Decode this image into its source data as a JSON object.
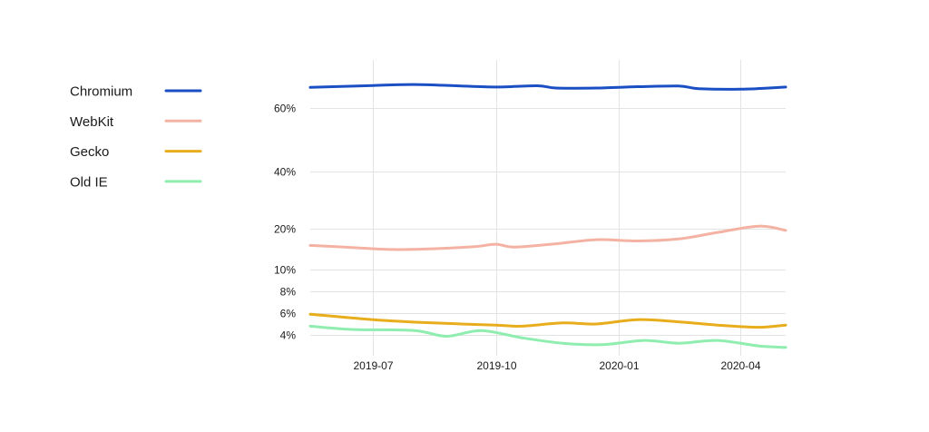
{
  "chart_data": {
    "type": "line",
    "title": "",
    "xlabel": "",
    "ylabel": "",
    "grid": true,
    "legend_position": "left",
    "x_ticks": [
      "2019-07",
      "2019-10",
      "2020-01",
      "2020-04"
    ],
    "y_ticks": [
      "4%",
      "6%",
      "8%",
      "10%",
      "20%",
      "40%",
      "60%"
    ],
    "y_tick_values": [
      4,
      6,
      8,
      10,
      20,
      40,
      60
    ],
    "x_range": [
      "2019-05-15",
      "2020-05-05"
    ],
    "series": [
      {
        "name": "Chromium",
        "color": "#1a4fc4",
        "points": [
          [
            "2019-05-15",
            66.5
          ],
          [
            "2019-07-01",
            67.1
          ],
          [
            "2019-08-01",
            67.4
          ],
          [
            "2019-09-01",
            67.0
          ],
          [
            "2019-10-01",
            66.6
          ],
          [
            "2019-11-01",
            67.0
          ],
          [
            "2019-11-15",
            66.3
          ],
          [
            "2019-12-15",
            66.3
          ],
          [
            "2020-01-15",
            66.7
          ],
          [
            "2020-02-15",
            66.9
          ],
          [
            "2020-03-01",
            66.1
          ],
          [
            "2020-04-01",
            65.9
          ],
          [
            "2020-05-05",
            66.6
          ]
        ]
      },
      {
        "name": "WebKit",
        "color": "#f4b2a3",
        "points": [
          [
            "2019-05-15",
            15.9
          ],
          [
            "2019-06-15",
            15.4
          ],
          [
            "2019-07-15",
            14.9
          ],
          [
            "2019-08-15",
            15.1
          ],
          [
            "2019-09-15",
            15.6
          ],
          [
            "2019-10-01",
            16.2
          ],
          [
            "2019-10-15",
            15.5
          ],
          [
            "2019-11-15",
            16.3
          ],
          [
            "2019-12-15",
            17.3
          ],
          [
            "2020-01-15",
            17.0
          ],
          [
            "2020-02-15",
            17.5
          ],
          [
            "2020-03-15",
            19.1
          ],
          [
            "2020-04-15",
            20.9
          ],
          [
            "2020-05-05",
            19.6
          ]
        ]
      },
      {
        "name": "Gecko",
        "color": "#e8ad1c",
        "points": [
          [
            "2019-05-15",
            5.9
          ],
          [
            "2019-07-01",
            5.4
          ],
          [
            "2019-08-15",
            5.1
          ],
          [
            "2019-10-01",
            4.9
          ],
          [
            "2019-10-20",
            4.8
          ],
          [
            "2019-11-20",
            5.1
          ],
          [
            "2019-12-15",
            5.0
          ],
          [
            "2020-01-15",
            5.4
          ],
          [
            "2020-02-15",
            5.2
          ],
          [
            "2020-03-15",
            4.9
          ],
          [
            "2020-04-15",
            4.7
          ],
          [
            "2020-05-05",
            4.9
          ]
        ]
      },
      {
        "name": "Old IE",
        "color": "#8fedaf",
        "points": [
          [
            "2019-05-15",
            4.8
          ],
          [
            "2019-06-15",
            4.5
          ],
          [
            "2019-08-01",
            4.4
          ],
          [
            "2019-08-25",
            3.9
          ],
          [
            "2019-09-20",
            4.4
          ],
          [
            "2019-10-20",
            3.8
          ],
          [
            "2019-11-20",
            3.4
          ],
          [
            "2019-12-20",
            3.3
          ],
          [
            "2020-01-20",
            3.6
          ],
          [
            "2020-02-15",
            3.4
          ],
          [
            "2020-03-15",
            3.6
          ],
          [
            "2020-04-15",
            3.2
          ],
          [
            "2020-05-05",
            3.1
          ]
        ]
      }
    ]
  }
}
